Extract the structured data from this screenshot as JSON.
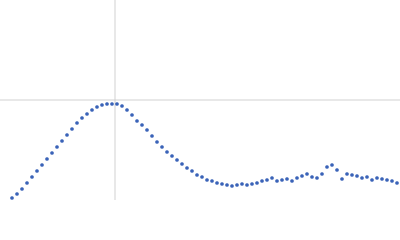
{
  "chart_data": {
    "type": "scatter",
    "x": [
      12,
      17,
      22,
      27,
      32,
      37,
      42,
      47,
      52,
      57,
      62,
      67,
      72,
      77,
      82,
      87,
      92,
      97,
      102,
      107,
      112,
      117,
      122,
      127,
      132,
      137,
      142,
      147,
      152,
      157,
      162,
      167,
      172,
      177,
      182,
      187,
      192,
      197,
      202,
      207,
      212,
      217,
      222,
      227,
      232,
      237,
      242,
      247,
      252,
      257,
      262,
      267,
      272,
      277,
      282,
      287,
      292,
      297,
      302,
      307,
      312,
      317,
      322,
      327,
      332,
      337,
      342,
      347,
      352,
      357,
      362,
      367,
      372,
      377,
      382,
      387,
      392,
      397
    ],
    "series": [
      {
        "color": "#3a63b8",
        "values": [
          2,
          6,
          11,
          17,
          23,
          29,
          35,
          41,
          47,
          53,
          59,
          65,
          71,
          77,
          82,
          86,
          90,
          93,
          95,
          96,
          96,
          96,
          94,
          90,
          85,
          79,
          75,
          70,
          64,
          58,
          53,
          48,
          44,
          40,
          36,
          32,
          29,
          25,
          23,
          20,
          19,
          17,
          16,
          15,
          14,
          15,
          16,
          15,
          16,
          17,
          19,
          20,
          22,
          19,
          20,
          21,
          19,
          22,
          24,
          26,
          23,
          22,
          26,
          33,
          35,
          30,
          21,
          26,
          25,
          24,
          22,
          23,
          20,
          22,
          21,
          20,
          19,
          17
        ]
      }
    ],
    "xlim": [
      0,
      400
    ],
    "ylim": [
      0,
      200
    ],
    "xticks": [
      115
    ],
    "yticks": [
      100
    ],
    "grid": true
  }
}
